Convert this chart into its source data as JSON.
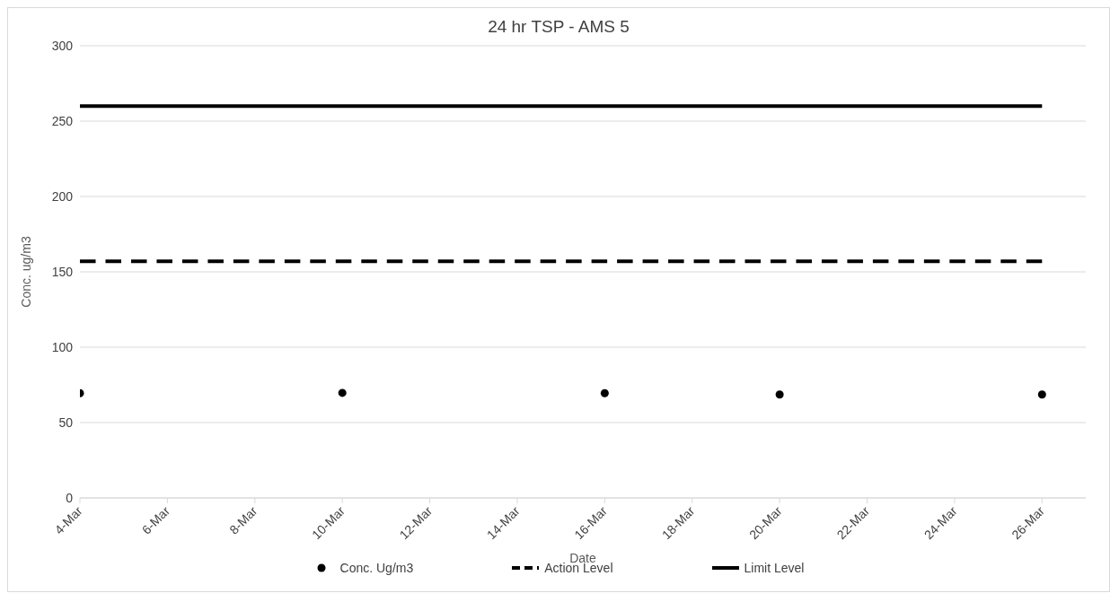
{
  "chart_data": {
    "type": "scatter",
    "title": "24 hr TSP - AMS 5",
    "xlabel": "Date",
    "ylabel": "Conc. ug/m3",
    "x": [
      "--03-04",
      "--03-10",
      "--03-16",
      "--03-20",
      "--03-26"
    ],
    "series": [
      {
        "name": "Conc. Ug/m3",
        "color": "#000000",
        "marker": "circle",
        "values": [
          69.5,
          69.7,
          69.5,
          68.6,
          68.6
        ]
      },
      {
        "name": "Action Level",
        "type": "line",
        "color": "#000000",
        "line_style": "dashed",
        "marker": "none",
        "x": [
          "--03-04",
          "--03-26"
        ],
        "values": [
          157,
          157
        ]
      },
      {
        "name": "Limit Level",
        "type": "line",
        "color": "#000000",
        "line_style": "solid",
        "marker": "none",
        "x": [
          "--03-04",
          "--03-26"
        ],
        "values": [
          260,
          260
        ]
      }
    ],
    "xlim": [
      "--03-04",
      "--03-27"
    ],
    "xticks": [
      {
        "value": "--03-04",
        "label": "4-Mar"
      },
      {
        "value": "--03-06",
        "label": "6-Mar"
      },
      {
        "value": "--03-08",
        "label": "8-Mar"
      },
      {
        "value": "--03-10",
        "label": "10-Mar"
      },
      {
        "value": "--03-12",
        "label": "12-Mar"
      },
      {
        "value": "--03-14",
        "label": "14-Mar"
      },
      {
        "value": "--03-16",
        "label": "16-Mar"
      },
      {
        "value": "--03-18",
        "label": "18-Mar"
      },
      {
        "value": "--03-20",
        "label": "20-Mar"
      },
      {
        "value": "--03-22",
        "label": "22-Mar"
      },
      {
        "value": "--03-24",
        "label": "24-Mar"
      },
      {
        "value": "--03-26",
        "label": "26-Mar"
      }
    ],
    "ylim": [
      0,
      300
    ],
    "yticks": [
      0,
      50,
      100,
      150,
      200,
      250,
      300
    ],
    "grid": "y",
    "legend": "bottom"
  }
}
